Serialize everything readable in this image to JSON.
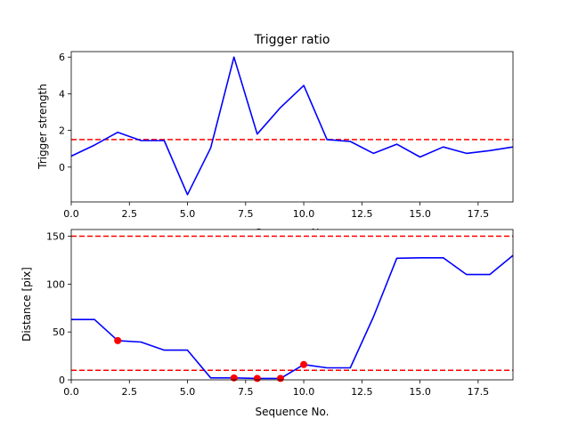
{
  "chart_data": [
    {
      "type": "line",
      "title": "Trigger ratio",
      "xlabel": "Sequence No.",
      "ylabel": "Trigger strength",
      "xlim": [
        0,
        19
      ],
      "ylim": [
        -1.9,
        6.3
      ],
      "xticks": [
        "0.0",
        "2.5",
        "5.0",
        "7.5",
        "10.0",
        "12.5",
        "15.0",
        "17.5"
      ],
      "yticks": [
        "0",
        "2",
        "4",
        "6"
      ],
      "grid": false,
      "series": [
        {
          "color": "#0000ff",
          "x": [
            0,
            1,
            2,
            3,
            4,
            5,
            6,
            7,
            8,
            9,
            10,
            11,
            12,
            13,
            14,
            15,
            16,
            17,
            18,
            19
          ],
          "y": [
            0.6,
            1.2,
            1.9,
            1.45,
            1.45,
            -1.5,
            1.05,
            6.0,
            1.8,
            3.25,
            4.45,
            1.5,
            1.4,
            0.75,
            1.25,
            0.55,
            1.1,
            0.75,
            0.9,
            1.1
          ]
        }
      ],
      "threshold_lines": [
        {
          "y": 1.5,
          "color": "#ff0000",
          "style": "dashed"
        }
      ]
    },
    {
      "type": "line",
      "title": "",
      "xlabel": "Sequence No.",
      "ylabel": "Distance [pix]",
      "xlim": [
        0,
        19
      ],
      "ylim": [
        0,
        157
      ],
      "xticks": [
        "0.0",
        "2.5",
        "5.0",
        "7.5",
        "10.0",
        "12.5",
        "15.0",
        "17.5"
      ],
      "yticks": [
        "0",
        "50",
        "100",
        "150"
      ],
      "grid": false,
      "series": [
        {
          "color": "#0000ff",
          "x": [
            0,
            1,
            2,
            3,
            4,
            5,
            6,
            7,
            8,
            9,
            10,
            11,
            12,
            13,
            14,
            15,
            16,
            17,
            18,
            19
          ],
          "y": [
            63,
            63,
            41,
            39.5,
            31,
            31,
            2,
            2,
            1.5,
            1.5,
            16,
            12.5,
            12.5,
            66,
            127,
            127.5,
            127.5,
            110,
            110,
            130
          ]
        }
      ],
      "markers": {
        "color": "#ff0000",
        "x": [
          2,
          7,
          8,
          9,
          10
        ],
        "y": [
          41,
          2,
          1.5,
          1.5,
          16
        ]
      },
      "threshold_lines": [
        {
          "y": 150,
          "color": "#ff0000",
          "style": "dashed"
        },
        {
          "y": 10,
          "color": "#ff0000",
          "style": "dashed"
        }
      ]
    }
  ]
}
